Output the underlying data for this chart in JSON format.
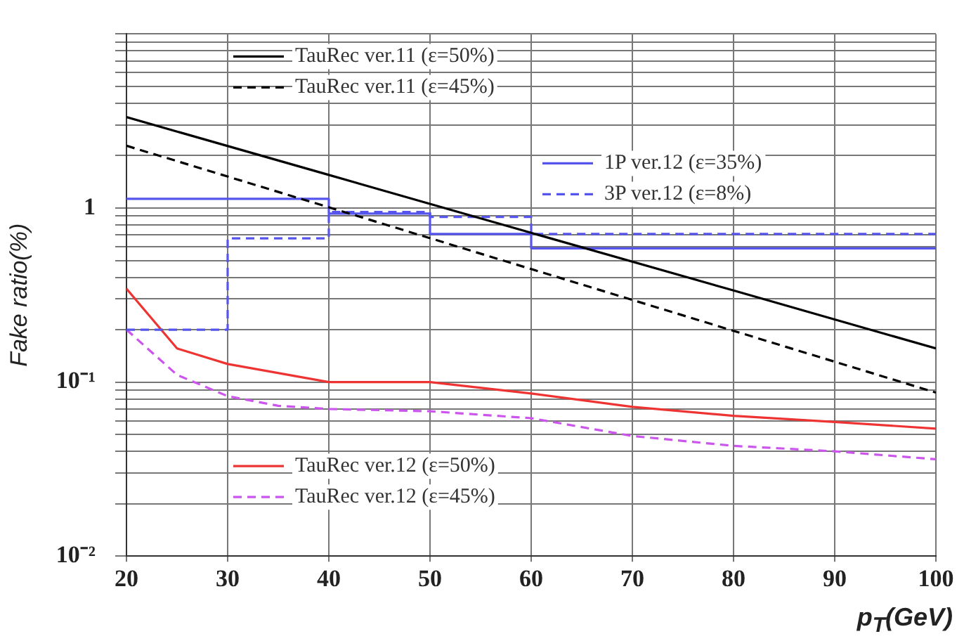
{
  "chart_data": {
    "type": "line",
    "xlabel": "p$_{T}$(GeV)",
    "ylabel": "Fake ratio(%)",
    "xlim": [
      20,
      100
    ],
    "xticks": [
      20,
      30,
      40,
      50,
      60,
      70,
      80,
      90,
      100
    ],
    "ylim": [
      0.01,
      10
    ],
    "log": "y",
    "yticks": [
      {
        "value": 0.01,
        "label": "10⁻²"
      },
      {
        "value": 0.02,
        "label": null
      },
      {
        "value": 0.03,
        "label": null
      },
      {
        "value": 0.04,
        "label": null
      },
      {
        "value": 0.05,
        "label": null
      },
      {
        "value": 0.06,
        "label": null
      },
      {
        "value": 0.07,
        "label": null
      },
      {
        "value": 0.08,
        "label": null
      },
      {
        "value": 0.09,
        "label": null
      },
      {
        "value": 0.1,
        "label": "10⁻¹"
      },
      {
        "value": 0.2,
        "label": null
      },
      {
        "value": 0.3,
        "label": null
      },
      {
        "value": 0.4,
        "label": null
      },
      {
        "value": 0.5,
        "label": null
      },
      {
        "value": 0.6,
        "label": null
      },
      {
        "value": 0.7,
        "label": null
      },
      {
        "value": 0.8,
        "label": null
      },
      {
        "value": 0.9,
        "label": null
      },
      {
        "value": 1,
        "label": "1"
      },
      {
        "value": 2,
        "label": null
      },
      {
        "value": 3,
        "label": null
      },
      {
        "value": 4,
        "label": null
      },
      {
        "value": 5,
        "label": null
      },
      {
        "value": 6,
        "label": null
      },
      {
        "value": 7,
        "label": null
      },
      {
        "value": 8,
        "label": null
      },
      {
        "value": 9,
        "label": null
      },
      {
        "value": 10,
        "label": null
      }
    ],
    "grid": true,
    "legend": "top",
    "marker": "none",
    "series": [
      {
        "name": "TauRec ver.11 (ε=50%)",
        "color": "#000000",
        "line_style": "solid",
        "x": [
          20,
          40,
          60,
          80,
          100
        ],
        "values": [
          3.33,
          1.55,
          0.72,
          0.336,
          0.156
        ]
      },
      {
        "name": "TauRec ver.11 (ε=45%)",
        "color": "#000000",
        "line_style": "dashed",
        "x": [
          20,
          40,
          60,
          80,
          100
        ],
        "values": [
          2.28,
          1.01,
          0.446,
          0.197,
          0.087
        ]
      },
      {
        "name": "1P ver.12 (ε=35%)",
        "type": "step",
        "color": "#5555ee",
        "line_style": "solid",
        "x": [
          20,
          40,
          50,
          60,
          100
        ],
        "values": [
          1.13,
          0.93,
          0.71,
          0.587,
          0.587
        ]
      },
      {
        "name": "3P ver.12 (ε=8%)",
        "type": "step",
        "color": "#5555ee",
        "line_style": "dashed",
        "x": [
          20,
          30,
          40,
          50,
          60,
          100
        ],
        "values": [
          0.2,
          0.67,
          0.95,
          0.89,
          0.71,
          0.71
        ]
      },
      {
        "name": "TauRec ver.12 (ε=50%)",
        "color": "#ee3333",
        "line_style": "solid",
        "x": [
          20,
          25,
          30,
          40,
          50,
          60,
          70,
          80,
          90,
          100
        ],
        "values": [
          0.344,
          0.156,
          0.127,
          0.1,
          0.1,
          0.086,
          0.072,
          0.064,
          0.059,
          0.054
        ]
      },
      {
        "name": "TauRec ver.12 (ε=45%)",
        "color": "#cc55ee",
        "line_style": "dashed",
        "x": [
          20,
          25,
          30,
          35,
          40,
          50,
          60,
          70,
          80,
          90,
          100
        ],
        "values": [
          0.2,
          0.11,
          0.083,
          0.073,
          0.07,
          0.068,
          0.062,
          0.049,
          0.043,
          0.04,
          0.036
        ]
      }
    ]
  }
}
